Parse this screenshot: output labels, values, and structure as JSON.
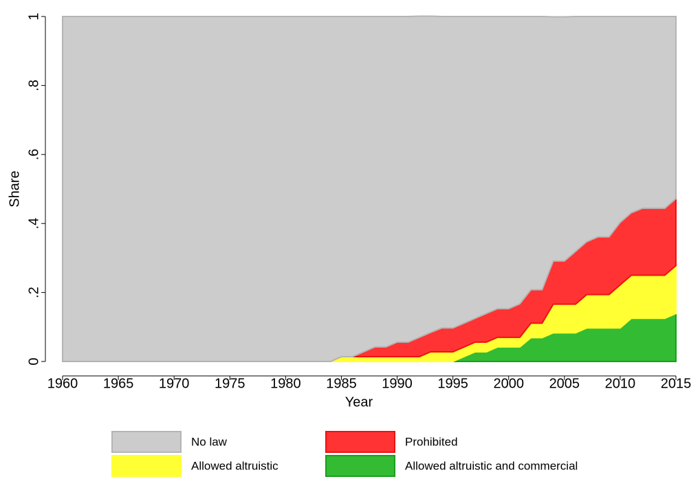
{
  "chart_data": {
    "type": "stacked_area",
    "x_label": "Year",
    "y_label": "Share",
    "x": [
      1960,
      1961,
      1962,
      1963,
      1964,
      1965,
      1966,
      1967,
      1968,
      1969,
      1970,
      1971,
      1972,
      1973,
      1974,
      1975,
      1976,
      1977,
      1978,
      1979,
      1980,
      1981,
      1982,
      1983,
      1984,
      1985,
      1986,
      1987,
      1988,
      1989,
      1990,
      1991,
      1992,
      1993,
      1994,
      1995,
      1996,
      1997,
      1998,
      1999,
      2000,
      2001,
      2002,
      2003,
      2004,
      2005,
      2006,
      2007,
      2008,
      2009,
      2010,
      2011,
      2012,
      2013,
      2014,
      2015
    ],
    "series": [
      {
        "name": "Allowed altruistic and commercial",
        "color": "#33bb33",
        "edge": "#1c9e1c",
        "values": [
          0,
          0,
          0,
          0,
          0,
          0,
          0,
          0,
          0,
          0,
          0,
          0,
          0,
          0,
          0,
          0,
          0,
          0,
          0,
          0,
          0,
          0,
          0,
          0,
          0,
          0,
          0,
          0,
          0,
          0,
          0,
          0,
          0,
          0,
          0,
          0,
          0.014,
          0.028,
          0.028,
          0.042,
          0.042,
          0.042,
          0.069,
          0.069,
          0.083,
          0.083,
          0.083,
          0.097,
          0.097,
          0.097,
          0.097,
          0.125,
          0.125,
          0.125,
          0.125,
          0.139
        ]
      },
      {
        "name": "Allowed altruistic",
        "color": "#ffff33",
        "edge": "#ffff33",
        "values": [
          0,
          0,
          0,
          0,
          0,
          0,
          0,
          0,
          0,
          0,
          0,
          0,
          0,
          0,
          0,
          0,
          0,
          0,
          0,
          0,
          0,
          0,
          0,
          0,
          0,
          0.014,
          0.014,
          0.014,
          0.014,
          0.014,
          0.014,
          0.014,
          0.014,
          0.028,
          0.028,
          0.028,
          0.028,
          0.028,
          0.028,
          0.028,
          0.028,
          0.028,
          0.042,
          0.042,
          0.083,
          0.083,
          0.083,
          0.097,
          0.097,
          0.097,
          0.125,
          0.125,
          0.125,
          0.125,
          0.125,
          0.139
        ]
      },
      {
        "name": "Prohibited",
        "color": "#ff3333",
        "edge": "#ee1111",
        "values": [
          0,
          0,
          0,
          0,
          0,
          0,
          0,
          0,
          0,
          0,
          0,
          0,
          0,
          0,
          0,
          0,
          0,
          0,
          0,
          0,
          0,
          0,
          0,
          0,
          0,
          0,
          0,
          0.014,
          0.028,
          0.028,
          0.042,
          0.042,
          0.056,
          0.056,
          0.069,
          0.069,
          0.069,
          0.069,
          0.083,
          0.083,
          0.083,
          0.097,
          0.097,
          0.097,
          0.125,
          0.125,
          0.153,
          0.153,
          0.167,
          0.167,
          0.181,
          0.181,
          0.194,
          0.194,
          0.194,
          0.194
        ]
      },
      {
        "name": "No law",
        "color": "#cccccc",
        "edge": "#b4b4b4",
        "values": [
          1,
          1,
          1,
          1,
          1,
          1,
          1,
          1,
          1,
          1,
          1,
          1,
          1,
          1,
          1,
          1,
          1,
          1,
          1,
          1,
          1,
          1,
          1,
          1,
          1,
          0.986,
          0.986,
          0.972,
          0.958,
          0.958,
          0.944,
          0.944,
          0.931,
          0.917,
          0.903,
          0.903,
          0.889,
          0.875,
          0.861,
          0.847,
          0.847,
          0.833,
          0.792,
          0.792,
          0.708,
          0.708,
          0.681,
          0.653,
          0.639,
          0.639,
          0.597,
          0.569,
          0.556,
          0.556,
          0.556,
          0.528
        ]
      }
    ],
    "xlim": [
      1960,
      2015
    ],
    "xticks": [
      1960,
      1965,
      1970,
      1975,
      1980,
      1985,
      1990,
      1995,
      2000,
      2005,
      2010,
      2015
    ],
    "ylim": [
      0,
      1
    ],
    "yticks": [
      0,
      {
        "value": 0.2,
        "label": ".2"
      },
      {
        "value": 0.4,
        "label": ".4"
      },
      {
        "value": 0.6,
        "label": ".6"
      },
      {
        "value": 0.8,
        "label": ".8"
      },
      1
    ],
    "grid": false,
    "legend": "bottom"
  }
}
